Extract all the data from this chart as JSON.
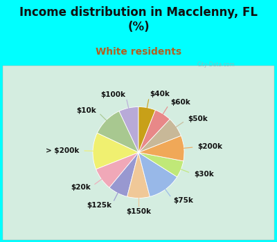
{
  "title": "Income distribution in Macclenny, FL\n(%)",
  "subtitle": "White residents",
  "bg_color": "#00FFFF",
  "chart_bg_color": "#d4ede0",
  "watermark": "City-Data.com",
  "labels": [
    "$100k",
    "$10k",
    "> $200k",
    "$20k",
    "$125k",
    "$150k",
    "$75k",
    "$30k",
    "$200k",
    "$50k",
    "$60k",
    "$40k"
  ],
  "sizes": [
    7,
    11,
    13,
    8,
    7,
    8,
    12,
    6,
    9,
    7,
    6,
    6
  ],
  "colors": [
    "#b8aad8",
    "#a8c890",
    "#f0f070",
    "#f0a8b8",
    "#9898d0",
    "#f0c898",
    "#98b8e8",
    "#c0e878",
    "#f0a858",
    "#c8b898",
    "#e88888",
    "#c8a018"
  ],
  "startangle": 90,
  "label_fontsize": 7.5,
  "title_fontsize": 12,
  "subtitle_fontsize": 10
}
